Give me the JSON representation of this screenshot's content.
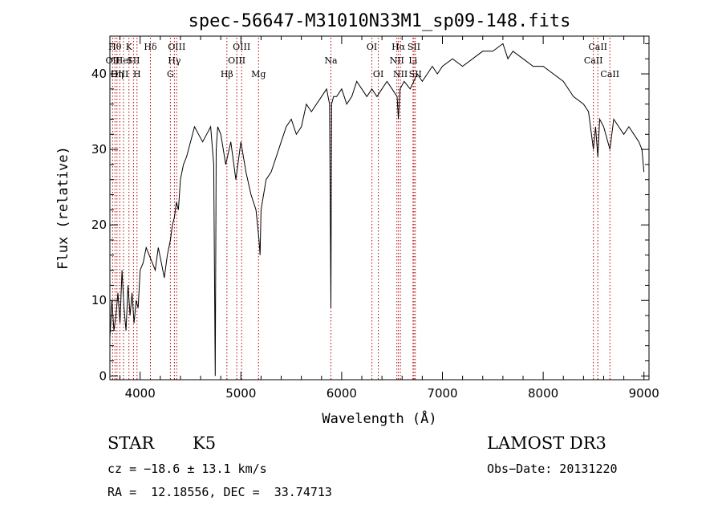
{
  "chart_data": {
    "type": "line",
    "title": "spec-56647-M31010N33M1_sp09-148.fits",
    "xlabel": "Wavelength (Å)",
    "ylabel": "Flux (relative)",
    "xlim": [
      3700,
      9050
    ],
    "ylim": [
      -0.5,
      45
    ],
    "xticks": [
      4000,
      5000,
      6000,
      7000,
      8000,
      9000
    ],
    "yticks": [
      0,
      10,
      20,
      30,
      40
    ],
    "grid": false,
    "series": [
      {
        "x": [
          3700,
          3720,
          3740,
          3760,
          3780,
          3800,
          3820,
          3840,
          3860,
          3880,
          3900,
          3920,
          3940,
          3960,
          3980,
          4000,
          4030,
          4060,
          4090,
          4120,
          4150,
          4180,
          4210,
          4240,
          4270,
          4300,
          4320,
          4340,
          4360,
          4380,
          4400,
          4430,
          4460,
          4500,
          4540,
          4580,
          4620,
          4660,
          4700,
          4730,
          4745,
          4755,
          4770,
          4800,
          4850,
          4900,
          4950,
          5000,
          5050,
          5100,
          5150,
          5180,
          5190,
          5200,
          5250,
          5300,
          5350,
          5400,
          5450,
          5500,
          5550,
          5600,
          5650,
          5700,
          5750,
          5800,
          5850,
          5880,
          5893,
          5900,
          5920,
          5950,
          6000,
          6050,
          6100,
          6150,
          6200,
          6250,
          6300,
          6350,
          6400,
          6450,
          6500,
          6550,
          6563,
          6580,
          6620,
          6680,
          6750,
          6800,
          6850,
          6900,
          6950,
          7000,
          7100,
          7200,
          7300,
          7400,
          7500,
          7600,
          7650,
          7700,
          7800,
          7900,
          8000,
          8100,
          8200,
          8300,
          8400,
          8450,
          8498,
          8520,
          8542,
          8560,
          8600,
          8662,
          8700,
          8750,
          8800,
          8850,
          8900,
          8950,
          8980,
          9000
        ],
        "y": [
          5,
          10,
          6,
          8,
          11,
          7,
          14,
          9,
          6,
          12,
          8,
          11,
          7,
          10,
          9,
          14,
          15,
          17,
          16,
          15,
          14,
          17,
          15,
          13,
          16,
          18,
          20,
          21,
          23,
          22,
          26,
          28,
          29,
          31,
          33,
          32,
          31,
          32,
          33,
          28,
          0,
          30,
          33,
          32,
          28,
          31,
          26,
          31,
          27,
          24,
          22,
          18,
          16,
          22,
          26,
          27,
          29,
          31,
          33,
          34,
          32,
          33,
          36,
          35,
          36,
          37,
          38,
          36,
          9,
          36,
          37,
          37,
          38,
          36,
          37,
          39,
          38,
          37,
          38,
          37,
          38,
          39,
          38,
          37,
          34,
          38,
          39,
          38,
          40,
          39,
          40,
          41,
          40,
          41,
          42,
          41,
          42,
          43,
          43,
          44,
          42,
          43,
          42,
          41,
          41,
          40,
          39,
          37,
          36,
          35,
          30,
          33,
          29,
          34,
          33,
          30,
          34,
          33,
          32,
          33,
          32,
          31,
          30,
          27
        ]
      }
    ],
    "lines": [
      {
        "x": 3727,
        "label": "OII",
        "row": 1
      },
      {
        "x": 3750,
        "label": "Hθ",
        "row": 0
      },
      {
        "x": 3770,
        "label": "Hη",
        "row": 2
      },
      {
        "x": 3798,
        "label": "OIII",
        "row": 2
      },
      {
        "x": 3835,
        "label": "HeI",
        "row": 1
      },
      {
        "x": 3889,
        "label": "K",
        "row": 0
      },
      {
        "x": 3934,
        "label": "SII",
        "row": 1
      },
      {
        "x": 3969,
        "label": "H",
        "row": 2
      },
      {
        "x": 4102,
        "label": "Hδ",
        "row": 0
      },
      {
        "x": 4300,
        "label": "G",
        "row": 2
      },
      {
        "x": 4340,
        "label": "Hγ",
        "row": 1
      },
      {
        "x": 4363,
        "label": "OIII",
        "row": 0
      },
      {
        "x": 4861,
        "label": "Hβ",
        "row": 2
      },
      {
        "x": 4959,
        "label": "OIII",
        "row": 1
      },
      {
        "x": 5007,
        "label": "OIII",
        "row": 0
      },
      {
        "x": 5175,
        "label": "Mg",
        "row": 2
      },
      {
        "x": 5893,
        "label": "Na",
        "row": 1
      },
      {
        "x": 6300,
        "label": "OI",
        "row": 0
      },
      {
        "x": 6364,
        "label": "OI",
        "row": 2
      },
      {
        "x": 6548,
        "label": "NII",
        "row": 1
      },
      {
        "x": 6563,
        "label": "Hα",
        "row": 0
      },
      {
        "x": 6583,
        "label": "NII",
        "row": 2
      },
      {
        "x": 6708,
        "label": "Li",
        "row": 1
      },
      {
        "x": 6717,
        "label": "SII",
        "row": 0
      },
      {
        "x": 6731,
        "label": "SII",
        "row": 2
      },
      {
        "x": 8498,
        "label": "CaII",
        "row": 1
      },
      {
        "x": 8542,
        "label": "CaII",
        "row": 0
      },
      {
        "x": 8662,
        "label": "CaII",
        "row": 2
      }
    ]
  },
  "info": {
    "class": "STAR",
    "subclass": "K5",
    "survey": "LAMOST DR3",
    "cz": "cz = −18.6 ± 13.1 km/s",
    "obs_date": "Obs−Date: 20131220",
    "coords": "RA =  12.18556, DEC =  33.74713"
  }
}
